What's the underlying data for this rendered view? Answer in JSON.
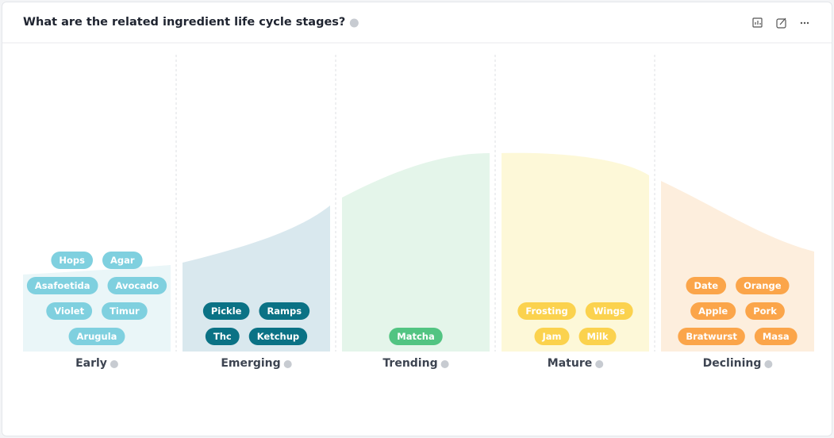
{
  "header": {
    "title": "What are the related ingredient life cycle stages?"
  },
  "stages": [
    {
      "name": "Early",
      "ingredients": [
        "Hops",
        "Agar",
        "Asafoetida",
        "Avocado",
        "Violet",
        "Timur",
        "Arugula"
      ]
    },
    {
      "name": "Emerging",
      "ingredients": [
        "Pickle",
        "Ramps",
        "Thc",
        "Ketchup"
      ]
    },
    {
      "name": "Trending",
      "ingredients": [
        "Matcha"
      ]
    },
    {
      "name": "Mature",
      "ingredients": [
        "Frosting",
        "Wings",
        "Jam",
        "Milk"
      ]
    },
    {
      "name": "Declining",
      "ingredients": [
        "Date",
        "Orange",
        "Apple",
        "Pork",
        "Bratwurst",
        "Masa"
      ]
    }
  ]
}
